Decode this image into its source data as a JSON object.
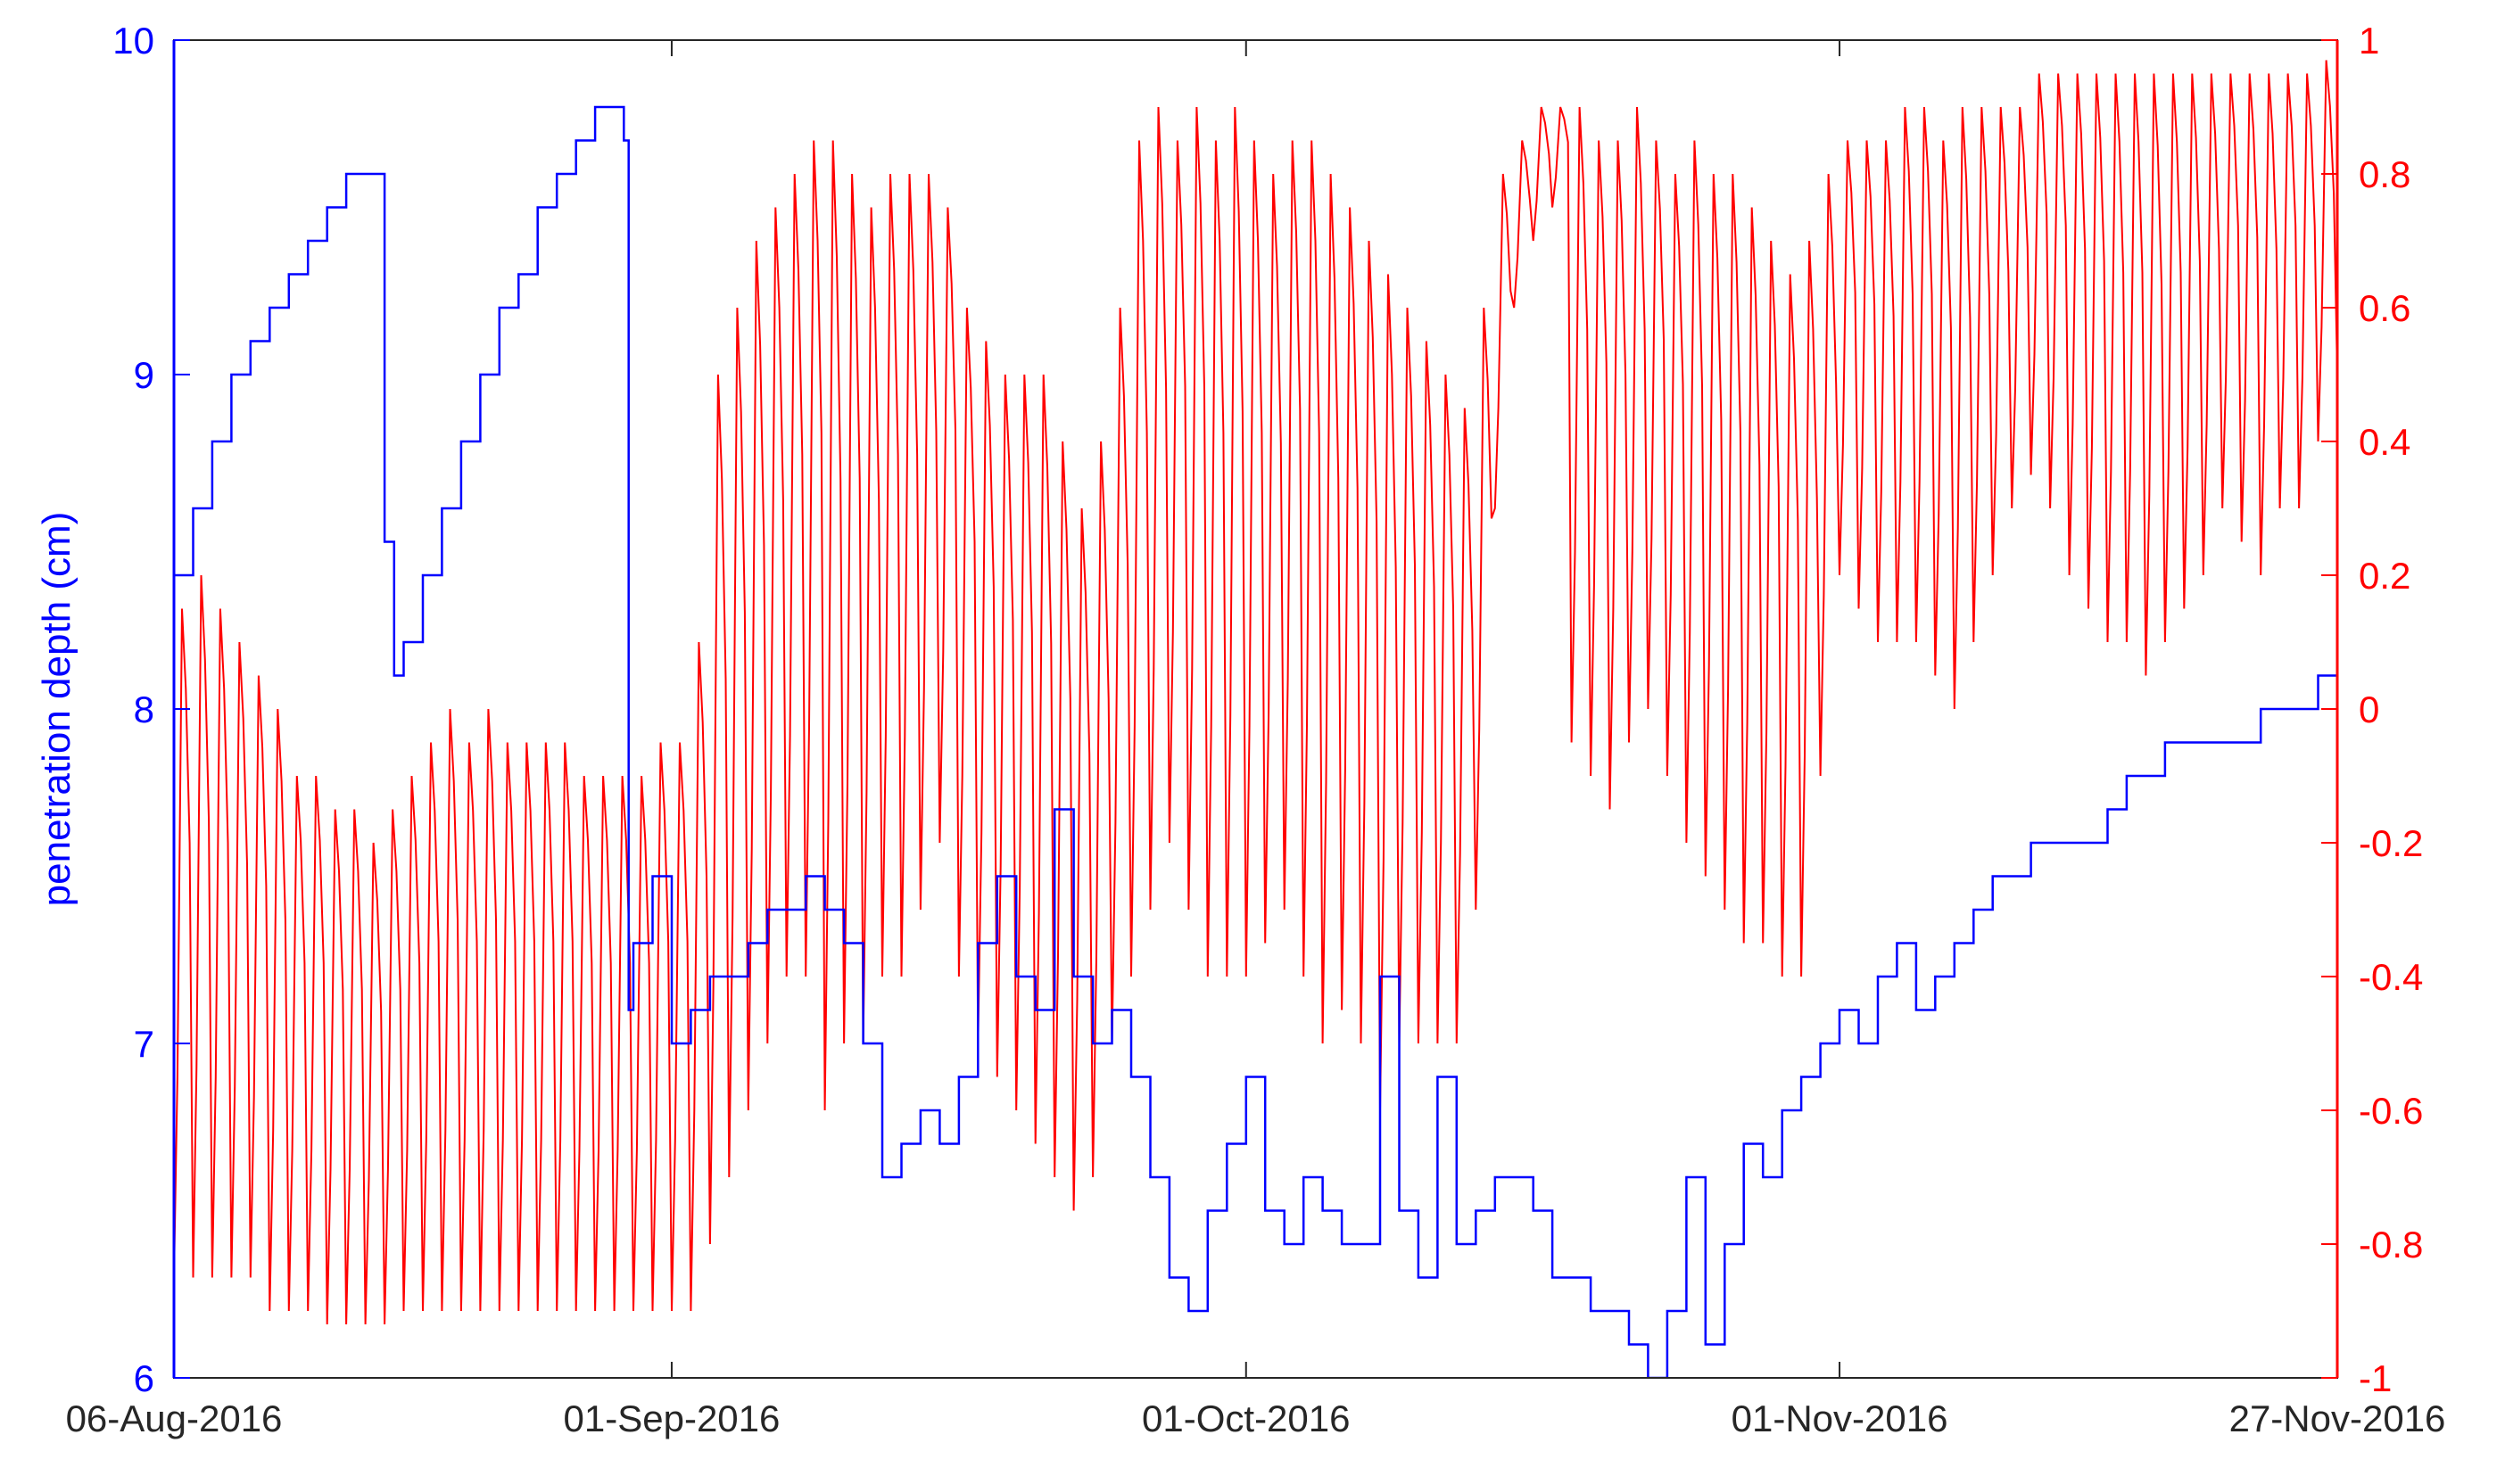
{
  "chart_data": {
    "type": "line",
    "title": "",
    "x_axis": {
      "type": "date",
      "range": [
        "2016-08-06",
        "2016-11-27"
      ],
      "tick_labels": [
        "06-Aug-2016",
        "01-Sep-2016",
        "01-Oct-2016",
        "01-Nov-2016",
        "27-Nov-2016"
      ],
      "tick_dates": [
        "2016-08-06",
        "2016-09-01",
        "2016-10-01",
        "2016-11-01",
        "2016-11-27"
      ]
    },
    "y_left": {
      "label": "penetration depth (cm)",
      "range": [
        6,
        10
      ],
      "ticks": [
        6,
        7,
        8,
        9,
        10
      ],
      "tick_labels": [
        "6",
        "7",
        "8",
        "9",
        "10"
      ],
      "color": "#0000ff"
    },
    "y_right": {
      "label": "",
      "range": [
        -1,
        1
      ],
      "ticks": [
        -1,
        -0.8,
        -0.6,
        -0.4,
        -0.2,
        0,
        0.2,
        0.4,
        0.6,
        0.8,
        1
      ],
      "tick_labels": [
        "-1",
        "-0.8",
        "-0.6",
        "-0.4",
        "-0.2",
        "0",
        "0.2",
        "0.4",
        "0.6",
        "0.8",
        "1"
      ],
      "color": "#ff0000"
    },
    "grid": false,
    "legend": "none",
    "series": [
      {
        "axis": "left",
        "color": "#0000ff",
        "style": "step",
        "points": [
          [
            "2016-08-06",
            8.4
          ],
          [
            "2016-08-07",
            8.6
          ],
          [
            "2016-08-08",
            8.8
          ],
          [
            "2016-08-09",
            9.0
          ],
          [
            "2016-08-10",
            9.1
          ],
          [
            "2016-08-11",
            9.2
          ],
          [
            "2016-08-12",
            9.3
          ],
          [
            "2016-08-13",
            9.4
          ],
          [
            "2016-08-14",
            9.5
          ],
          [
            "2016-08-15",
            9.6
          ],
          [
            "2016-08-16",
            9.6
          ],
          [
            "2016-08-17",
            8.5
          ],
          [
            "2016-08-17T12:00",
            8.1
          ],
          [
            "2016-08-18",
            8.2
          ],
          [
            "2016-08-19",
            8.4
          ],
          [
            "2016-08-20",
            8.6
          ],
          [
            "2016-08-21",
            8.8
          ],
          [
            "2016-08-22",
            9.0
          ],
          [
            "2016-08-23",
            9.2
          ],
          [
            "2016-08-24",
            9.3
          ],
          [
            "2016-08-25",
            9.5
          ],
          [
            "2016-08-26",
            9.6
          ],
          [
            "2016-08-27",
            9.7
          ],
          [
            "2016-08-28",
            9.8
          ],
          [
            "2016-08-29",
            9.8
          ],
          [
            "2016-08-29T12:00",
            9.7
          ],
          [
            "2016-08-29T18:00",
            7.1
          ],
          [
            "2016-08-30",
            7.3
          ],
          [
            "2016-08-31",
            7.5
          ],
          [
            "2016-09-01",
            7.0
          ],
          [
            "2016-09-02",
            7.1
          ],
          [
            "2016-09-03",
            7.2
          ],
          [
            "2016-09-04",
            7.2
          ],
          [
            "2016-09-05",
            7.3
          ],
          [
            "2016-09-06",
            7.4
          ],
          [
            "2016-09-07",
            7.4
          ],
          [
            "2016-09-08",
            7.5
          ],
          [
            "2016-09-09",
            7.4
          ],
          [
            "2016-09-10",
            7.3
          ],
          [
            "2016-09-11",
            7.0
          ],
          [
            "2016-09-12",
            6.6
          ],
          [
            "2016-09-13",
            6.7
          ],
          [
            "2016-09-14",
            6.8
          ],
          [
            "2016-09-15",
            6.7
          ],
          [
            "2016-09-16",
            6.9
          ],
          [
            "2016-09-17",
            7.3
          ],
          [
            "2016-09-18",
            7.5
          ],
          [
            "2016-09-19",
            7.2
          ],
          [
            "2016-09-20",
            7.1
          ],
          [
            "2016-09-21",
            7.7
          ],
          [
            "2016-09-22",
            7.2
          ],
          [
            "2016-09-23",
            7.0
          ],
          [
            "2016-09-24",
            7.1
          ],
          [
            "2016-09-25",
            6.9
          ],
          [
            "2016-09-26",
            6.6
          ],
          [
            "2016-09-27",
            6.3
          ],
          [
            "2016-09-28",
            6.2
          ],
          [
            "2016-09-29",
            6.5
          ],
          [
            "2016-09-30",
            6.7
          ],
          [
            "2016-10-01",
            6.9
          ],
          [
            "2016-10-02",
            6.5
          ],
          [
            "2016-10-03",
            6.4
          ],
          [
            "2016-10-04",
            6.6
          ],
          [
            "2016-10-05",
            6.5
          ],
          [
            "2016-10-06",
            6.4
          ],
          [
            "2016-10-07",
            6.4
          ],
          [
            "2016-10-08",
            7.2
          ],
          [
            "2016-10-09",
            6.5
          ],
          [
            "2016-10-10",
            6.3
          ],
          [
            "2016-10-11",
            6.9
          ],
          [
            "2016-10-12",
            6.4
          ],
          [
            "2016-10-13",
            6.5
          ],
          [
            "2016-10-14",
            6.6
          ],
          [
            "2016-10-15",
            6.6
          ],
          [
            "2016-10-16",
            6.5
          ],
          [
            "2016-10-17",
            6.3
          ],
          [
            "2016-10-18",
            6.3
          ],
          [
            "2016-10-19",
            6.2
          ],
          [
            "2016-10-20",
            6.2
          ],
          [
            "2016-10-21",
            6.1
          ],
          [
            "2016-10-22",
            6.0
          ],
          [
            "2016-10-23",
            6.2
          ],
          [
            "2016-10-24",
            6.6
          ],
          [
            "2016-10-25",
            6.1
          ],
          [
            "2016-10-26",
            6.4
          ],
          [
            "2016-10-27",
            6.7
          ],
          [
            "2016-10-28",
            6.6
          ],
          [
            "2016-10-29",
            6.8
          ],
          [
            "2016-10-30",
            6.9
          ],
          [
            "2016-10-31",
            7.0
          ],
          [
            "2016-11-01",
            7.1
          ],
          [
            "2016-11-02",
            7.0
          ],
          [
            "2016-11-03",
            7.2
          ],
          [
            "2016-11-04",
            7.3
          ],
          [
            "2016-11-05",
            7.1
          ],
          [
            "2016-11-06",
            7.2
          ],
          [
            "2016-11-07",
            7.3
          ],
          [
            "2016-11-08",
            7.4
          ],
          [
            "2016-11-09",
            7.5
          ],
          [
            "2016-11-10",
            7.5
          ],
          [
            "2016-11-11",
            7.6
          ],
          [
            "2016-11-12",
            7.6
          ],
          [
            "2016-11-13",
            7.6
          ],
          [
            "2016-11-14",
            7.6
          ],
          [
            "2016-11-15",
            7.7
          ],
          [
            "2016-11-16",
            7.8
          ],
          [
            "2016-11-17",
            7.8
          ],
          [
            "2016-11-18",
            7.9
          ],
          [
            "2016-11-19",
            7.9
          ],
          [
            "2016-11-20",
            7.9
          ],
          [
            "2016-11-21",
            7.9
          ],
          [
            "2016-11-22",
            7.9
          ],
          [
            "2016-11-23",
            8.0
          ],
          [
            "2016-11-24",
            8.0
          ],
          [
            "2016-11-25",
            8.0
          ],
          [
            "2016-11-26",
            8.1
          ],
          [
            "2016-11-27",
            8.3
          ]
        ]
      },
      {
        "axis": "right",
        "color": "#ff0000",
        "style": "daily-oscillation",
        "daily_min_max": [
          [
            "2016-08-06",
            -0.85,
            0.15
          ],
          [
            "2016-08-07",
            -0.85,
            0.2
          ],
          [
            "2016-08-08",
            -0.85,
            0.15
          ],
          [
            "2016-08-09",
            -0.85,
            0.1
          ],
          [
            "2016-08-10",
            -0.85,
            0.05
          ],
          [
            "2016-08-11",
            -0.9,
            0.0
          ],
          [
            "2016-08-12",
            -0.9,
            -0.1
          ],
          [
            "2016-08-13",
            -0.9,
            -0.1
          ],
          [
            "2016-08-14",
            -0.92,
            -0.15
          ],
          [
            "2016-08-15",
            -0.92,
            -0.15
          ],
          [
            "2016-08-16",
            -0.92,
            -0.2
          ],
          [
            "2016-08-17",
            -0.92,
            -0.15
          ],
          [
            "2016-08-18",
            -0.9,
            -0.1
          ],
          [
            "2016-08-19",
            -0.9,
            -0.05
          ],
          [
            "2016-08-20",
            -0.9,
            0.0
          ],
          [
            "2016-08-21",
            -0.9,
            -0.05
          ],
          [
            "2016-08-22",
            -0.9,
            0.0
          ],
          [
            "2016-08-23",
            -0.9,
            -0.05
          ],
          [
            "2016-08-24",
            -0.9,
            -0.05
          ],
          [
            "2016-08-25",
            -0.9,
            -0.05
          ],
          [
            "2016-08-26",
            -0.9,
            -0.05
          ],
          [
            "2016-08-27",
            -0.9,
            -0.1
          ],
          [
            "2016-08-28",
            -0.9,
            -0.1
          ],
          [
            "2016-08-29",
            -0.9,
            -0.1
          ],
          [
            "2016-08-30",
            -0.9,
            -0.1
          ],
          [
            "2016-08-31",
            -0.9,
            -0.05
          ],
          [
            "2016-09-01",
            -0.9,
            -0.05
          ],
          [
            "2016-09-02",
            -0.9,
            0.1
          ],
          [
            "2016-09-03",
            -0.8,
            0.5
          ],
          [
            "2016-09-04",
            -0.7,
            0.6
          ],
          [
            "2016-09-05",
            -0.6,
            0.7
          ],
          [
            "2016-09-06",
            -0.5,
            0.75
          ],
          [
            "2016-09-07",
            -0.4,
            0.8
          ],
          [
            "2016-09-08",
            -0.4,
            0.85
          ],
          [
            "2016-09-09",
            -0.6,
            0.85
          ],
          [
            "2016-09-10",
            -0.5,
            0.8
          ],
          [
            "2016-09-11",
            -0.5,
            0.75
          ],
          [
            "2016-09-12",
            -0.4,
            0.8
          ],
          [
            "2016-09-13",
            -0.4,
            0.8
          ],
          [
            "2016-09-14",
            -0.3,
            0.8
          ],
          [
            "2016-09-15",
            -0.2,
            0.75
          ],
          [
            "2016-09-16",
            -0.4,
            0.6
          ],
          [
            "2016-09-17",
            -0.5,
            0.55
          ],
          [
            "2016-09-18",
            -0.55,
            0.5
          ],
          [
            "2016-09-19",
            -0.6,
            0.5
          ],
          [
            "2016-09-20",
            -0.65,
            0.5
          ],
          [
            "2016-09-21",
            -0.7,
            0.4
          ],
          [
            "2016-09-22",
            -0.75,
            0.3
          ],
          [
            "2016-09-23",
            -0.7,
            0.4
          ],
          [
            "2016-09-24",
            -0.5,
            0.6
          ],
          [
            "2016-09-25",
            -0.4,
            0.85
          ],
          [
            "2016-09-26",
            -0.3,
            0.9
          ],
          [
            "2016-09-27",
            -0.2,
            0.85
          ],
          [
            "2016-09-28",
            -0.3,
            0.9
          ],
          [
            "2016-09-29",
            -0.4,
            0.85
          ],
          [
            "2016-09-30",
            -0.4,
            0.9
          ],
          [
            "2016-10-01",
            -0.4,
            0.85
          ],
          [
            "2016-10-02",
            -0.35,
            0.8
          ],
          [
            "2016-10-03",
            -0.3,
            0.85
          ],
          [
            "2016-10-04",
            -0.4,
            0.85
          ],
          [
            "2016-10-05",
            -0.5,
            0.8
          ],
          [
            "2016-10-06",
            -0.45,
            0.75
          ],
          [
            "2016-10-07",
            -0.5,
            0.7
          ],
          [
            "2016-10-08",
            -0.6,
            0.65
          ],
          [
            "2016-10-09",
            -0.5,
            0.6
          ],
          [
            "2016-10-10",
            -0.5,
            0.55
          ],
          [
            "2016-10-11",
            -0.5,
            0.5
          ],
          [
            "2016-10-12",
            -0.5,
            0.45
          ],
          [
            "2016-10-13",
            -0.3,
            0.6
          ],
          [
            "2016-10-14",
            0.3,
            0.8
          ],
          [
            "2016-10-15",
            0.6,
            0.85
          ],
          [
            "2016-10-16",
            0.7,
            0.9
          ],
          [
            "2016-10-17",
            0.75,
            0.9
          ],
          [
            "2016-10-18",
            -0.05,
            0.9
          ],
          [
            "2016-10-19",
            -0.1,
            0.85
          ],
          [
            "2016-10-20",
            -0.15,
            0.85
          ],
          [
            "2016-10-21",
            -0.05,
            0.9
          ],
          [
            "2016-10-22",
            0.0,
            0.85
          ],
          [
            "2016-10-23",
            -0.1,
            0.8
          ],
          [
            "2016-10-24",
            -0.2,
            0.85
          ],
          [
            "2016-10-25",
            -0.25,
            0.8
          ],
          [
            "2016-10-26",
            -0.3,
            0.8
          ],
          [
            "2016-10-27",
            -0.35,
            0.75
          ],
          [
            "2016-10-28",
            -0.35,
            0.7
          ],
          [
            "2016-10-29",
            -0.4,
            0.65
          ],
          [
            "2016-10-30",
            -0.4,
            0.7
          ],
          [
            "2016-10-31",
            -0.1,
            0.8
          ],
          [
            "2016-11-01",
            0.2,
            0.85
          ],
          [
            "2016-11-02",
            0.15,
            0.85
          ],
          [
            "2016-11-03",
            0.1,
            0.85
          ],
          [
            "2016-11-04",
            0.1,
            0.9
          ],
          [
            "2016-11-05",
            0.1,
            0.9
          ],
          [
            "2016-11-06",
            0.05,
            0.85
          ],
          [
            "2016-11-07",
            0.0,
            0.9
          ],
          [
            "2016-11-08",
            0.1,
            0.9
          ],
          [
            "2016-11-09",
            0.2,
            0.9
          ],
          [
            "2016-11-10",
            0.3,
            0.9
          ],
          [
            "2016-11-11",
            0.35,
            0.95
          ],
          [
            "2016-11-12",
            0.3,
            0.95
          ],
          [
            "2016-11-13",
            0.2,
            0.95
          ],
          [
            "2016-11-14",
            0.15,
            0.95
          ],
          [
            "2016-11-15",
            0.1,
            0.95
          ],
          [
            "2016-11-16",
            0.1,
            0.95
          ],
          [
            "2016-11-17",
            0.05,
            0.95
          ],
          [
            "2016-11-18",
            0.1,
            0.95
          ],
          [
            "2016-11-19",
            0.15,
            0.95
          ],
          [
            "2016-11-20",
            0.2,
            0.95
          ],
          [
            "2016-11-21",
            0.3,
            0.95
          ],
          [
            "2016-11-22",
            0.25,
            0.95
          ],
          [
            "2016-11-23",
            0.2,
            0.95
          ],
          [
            "2016-11-24",
            0.3,
            0.95
          ],
          [
            "2016-11-25",
            0.3,
            0.95
          ],
          [
            "2016-11-26",
            0.4,
            0.97
          ],
          [
            "2016-11-27",
            0.5,
            1.0
          ]
        ]
      }
    ]
  }
}
